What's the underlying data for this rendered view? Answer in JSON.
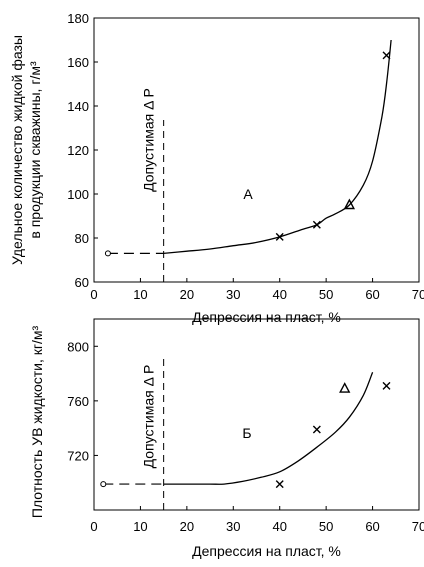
{
  "chart_data": [
    {
      "type": "line",
      "panel_label": "А",
      "xlabel": "Депрессия на пласт, %",
      "ylabel_lines": [
        "Удельное количество жидкой фазы",
        "в продукции  скважины, г/м³"
      ],
      "xlim": [
        0,
        70
      ],
      "ylim": [
        60,
        180
      ],
      "x_ticks": [
        0,
        10,
        20,
        30,
        40,
        50,
        60,
        70
      ],
      "y_ticks": [
        60,
        80,
        100,
        120,
        140,
        160,
        180
      ],
      "threshold": {
        "x": 15,
        "label": "Допустимая  Δ P"
      },
      "dashed_segment": {
        "x": [
          3,
          15
        ],
        "y": 73
      },
      "curve": {
        "x": [
          15,
          20,
          25,
          30,
          35,
          40,
          45,
          48,
          50,
          52,
          55,
          58,
          60,
          62,
          63,
          64
        ],
        "y": [
          73,
          74,
          75,
          76.5,
          78,
          80.5,
          84,
          86,
          89,
          91,
          95,
          104,
          115,
          135,
          150,
          170
        ]
      },
      "start_point": {
        "x": 3,
        "y": 73
      },
      "series": [
        {
          "marker": "x",
          "points": [
            [
              40,
              80.5
            ],
            [
              48,
              86
            ],
            [
              63,
              163
            ]
          ]
        },
        {
          "marker": "triangle",
          "points": [
            [
              55,
              95
            ]
          ]
        }
      ]
    },
    {
      "type": "line",
      "panel_label": "Б",
      "xlabel": "Депрессия на пласт, %",
      "ylabel_lines": [
        "Плотность УВ жидкости, кг/м³"
      ],
      "xlim": [
        0,
        70
      ],
      "ylim": [
        680,
        820
      ],
      "x_ticks": [
        0,
        10,
        20,
        30,
        40,
        50,
        60,
        70
      ],
      "y_ticks": [
        720,
        760,
        800
      ],
      "threshold": {
        "x": 15,
        "label": "Допустимая  Δ P"
      },
      "dashed_segment": {
        "x": [
          2,
          15
        ],
        "y": 699
      },
      "curve": {
        "x": [
          15,
          20,
          25,
          28,
          32,
          36,
          40,
          44,
          48,
          52,
          55,
          58,
          60
        ],
        "y": [
          699,
          699,
          699,
          699,
          701,
          704,
          708,
          716,
          726,
          737,
          748,
          764,
          781
        ]
      },
      "start_point": {
        "x": 2,
        "y": 699
      },
      "series": [
        {
          "marker": "x",
          "points": [
            [
              40,
              699
            ],
            [
              48,
              739
            ],
            [
              63,
              771
            ]
          ]
        },
        {
          "marker": "triangle",
          "points": [
            [
              54,
              769
            ]
          ]
        }
      ]
    }
  ]
}
